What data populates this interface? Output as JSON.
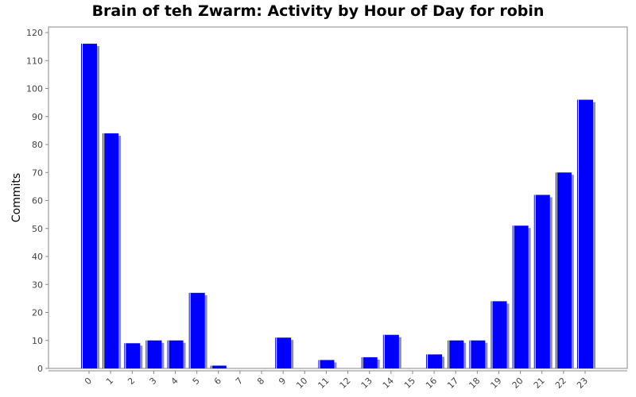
{
  "chart_data": {
    "type": "bar",
    "title": "Brain of teh Zwarm: Activity by Hour of Day for robin",
    "xlabel": "",
    "ylabel": "Commits",
    "ylim": [
      0,
      120
    ],
    "yticks": [
      0,
      10,
      20,
      30,
      40,
      50,
      60,
      70,
      80,
      90,
      100,
      110,
      120
    ],
    "categories": [
      "0",
      "1",
      "2",
      "3",
      "4",
      "5",
      "6",
      "7",
      "8",
      "9",
      "10",
      "11",
      "12",
      "13",
      "14",
      "15",
      "16",
      "17",
      "18",
      "19",
      "20",
      "21",
      "22",
      "23"
    ],
    "values": [
      116,
      84,
      9,
      10,
      10,
      27,
      1,
      0,
      0,
      11,
      0,
      3,
      0,
      4,
      12,
      0,
      5,
      10,
      10,
      24,
      51,
      62,
      70,
      96
    ],
    "grid": false,
    "legend": "none",
    "colors": {
      "bar": "#0000ff",
      "shadow": "#909090",
      "highlight": "#ffffff",
      "axis": "#888888"
    }
  }
}
